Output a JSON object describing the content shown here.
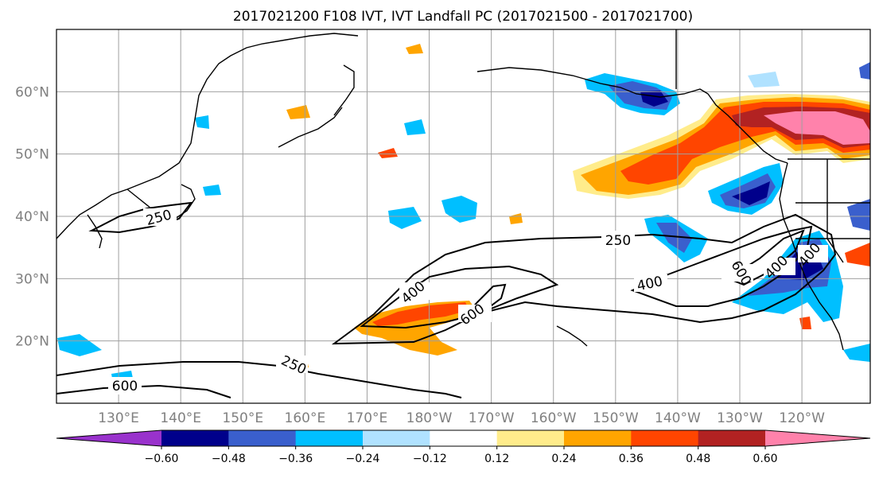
{
  "title": "2017021200 F108 IVT, IVT Landfall PC (2017021500 - 2017021700)",
  "map": {
    "lat_ticks": [
      "20°N",
      "30°N",
      "40°N",
      "50°N",
      "60°N"
    ],
    "lon_ticks": [
      "130°E",
      "140°E",
      "150°E",
      "160°E",
      "170°E",
      "180°W",
      "170°W",
      "160°W",
      "150°W",
      "140°W",
      "130°W",
      "120°W"
    ],
    "lon_range": [
      120,
      251
    ],
    "lat_range": [
      10,
      70
    ],
    "grid": true,
    "coastline_color": "#000000"
  },
  "contours": {
    "levels": [
      "250",
      "400",
      "600"
    ],
    "labels": [
      "250",
      "250",
      "250",
      "400",
      "400",
      "400",
      "400",
      "600",
      "600",
      "600"
    ],
    "color": "#000000"
  },
  "colorbar": {
    "ticks": [
      "−0.60",
      "−0.48",
      "−0.36",
      "−0.24",
      "−0.12",
      "0.12",
      "0.24",
      "0.36",
      "0.48",
      "0.60"
    ],
    "colors": [
      "#9932cc",
      "#00008b",
      "#3a5fcd",
      "#00bfff",
      "#b0e2ff",
      "#ffffff",
      "#ffec8b",
      "#ffa500",
      "#ff4500",
      "#b22222",
      "#ff82ab"
    ]
  }
}
